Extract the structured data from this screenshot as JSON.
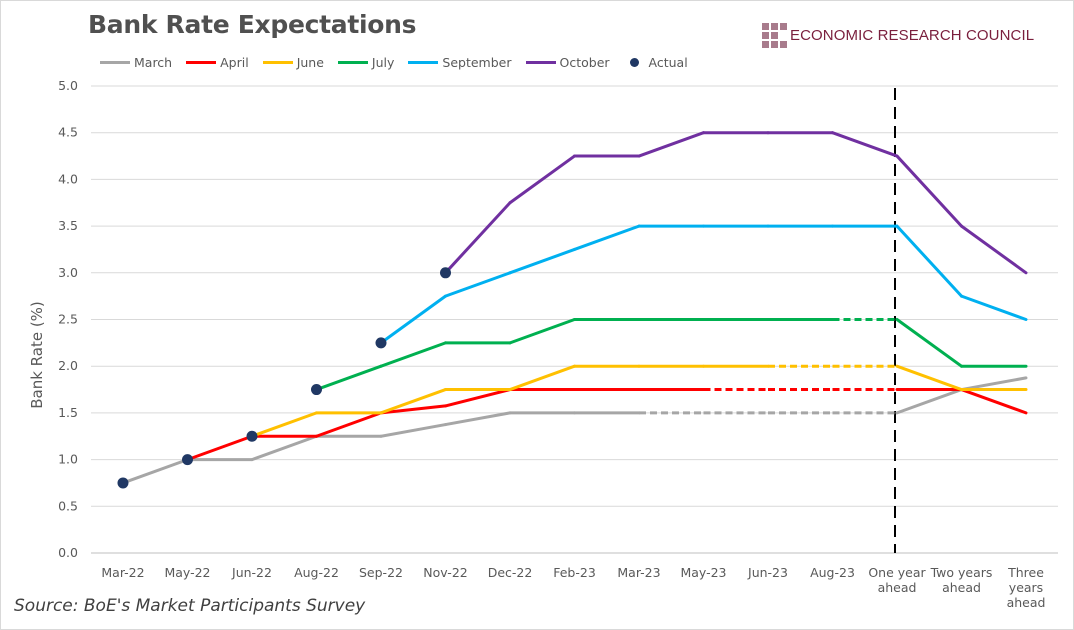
{
  "branding": {
    "logo_text": "ECONOMIC RESEARCH COUNCIL"
  },
  "source": "Source: BoE's Market Participants Survey",
  "chart_data": {
    "type": "line",
    "title": "Bank Rate Expectations",
    "ylabel": "Bank Rate (%)",
    "xlabel": "",
    "ylim": [
      0,
      5
    ],
    "yticks": [
      "0.0",
      "0.5",
      "1.0",
      "1.5",
      "2.0",
      "2.5",
      "3.0",
      "3.5",
      "4.0",
      "4.5",
      "5.0"
    ],
    "grid": true,
    "legend": "top-left",
    "categories": [
      "Mar-22",
      "May-22",
      "Jun-22",
      "Aug-22",
      "Sep-22",
      "Nov-22",
      "Dec-22",
      "Feb-23",
      "Mar-23",
      "May-23",
      "Jun-23",
      "Aug-23",
      "One year ahead",
      "Two years ahead",
      "Three years ahead"
    ],
    "category_lines": [
      [
        "Mar-22"
      ],
      [
        "May-22"
      ],
      [
        "Jun-22"
      ],
      [
        "Aug-22"
      ],
      [
        "Sep-22"
      ],
      [
        "Nov-22"
      ],
      [
        "Dec-22"
      ],
      [
        "Feb-23"
      ],
      [
        "Mar-23"
      ],
      [
        "May-23"
      ],
      [
        "Jun-23"
      ],
      [
        "Aug-23"
      ],
      [
        "One year",
        "ahead"
      ],
      [
        "Two years",
        "ahead"
      ],
      [
        "Three",
        "years",
        "ahead"
      ]
    ],
    "vertical_marker": "One year ahead",
    "series": [
      {
        "name": "March",
        "color": "#a6a6a6",
        "dashed_between": [
          "Mar-23",
          "One year ahead"
        ],
        "values": [
          0.75,
          1.0,
          1.0,
          1.25,
          1.25,
          1.375,
          1.5,
          1.5,
          1.5,
          1.5,
          1.5,
          1.5,
          1.5,
          1.75,
          1.875
        ]
      },
      {
        "name": "April",
        "color": "#ff0000",
        "dashed_between": [
          "May-23",
          "One year ahead"
        ],
        "values": [
          null,
          1.0,
          1.25,
          1.25,
          1.5,
          1.575,
          1.75,
          1.75,
          1.75,
          1.75,
          1.75,
          1.75,
          1.75,
          1.75,
          1.5
        ]
      },
      {
        "name": "June",
        "color": "#ffc000",
        "dashed_between": [
          "Jun-23",
          "One year ahead"
        ],
        "values": [
          null,
          null,
          1.25,
          1.5,
          1.5,
          1.75,
          1.75,
          2.0,
          2.0,
          2.0,
          2.0,
          2.0,
          2.0,
          1.75,
          1.75
        ]
      },
      {
        "name": "July",
        "color": "#00b050",
        "dashed_between": [
          "Aug-23",
          "One year ahead"
        ],
        "values": [
          null,
          null,
          null,
          1.75,
          2.0,
          2.25,
          2.25,
          2.5,
          2.5,
          2.5,
          2.5,
          2.5,
          2.5,
          2.0,
          2.0
        ]
      },
      {
        "name": "September",
        "color": "#00b0f0",
        "values": [
          null,
          null,
          null,
          null,
          2.25,
          2.75,
          3.0,
          3.25,
          3.5,
          3.5,
          3.5,
          3.5,
          3.5,
          2.75,
          2.5
        ]
      },
      {
        "name": "October",
        "color": "#7030a0",
        "values": [
          null,
          null,
          null,
          null,
          null,
          3.0,
          3.75,
          4.25,
          4.25,
          4.5,
          4.5,
          4.5,
          4.25,
          3.5,
          3.0
        ]
      },
      {
        "name": "Actual",
        "color": "#203864",
        "marker": "dot",
        "values": [
          0.75,
          1.0,
          1.25,
          1.75,
          2.25,
          3.0,
          null,
          null,
          null,
          null,
          null,
          null,
          null,
          null,
          null
        ]
      }
    ]
  }
}
